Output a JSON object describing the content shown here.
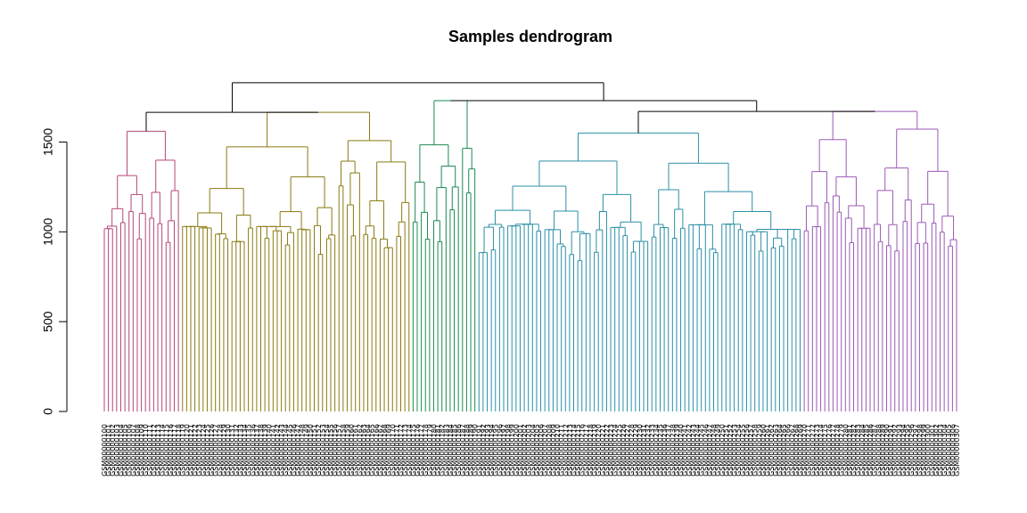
{
  "chart_data": {
    "type": "dendrogram",
    "title": "Samples dendrogram",
    "xlabel": "",
    "ylabel": "",
    "ylim": [
      0,
      1750
    ],
    "yticks": [
      0,
      500,
      1000,
      1500
    ],
    "yticklabels": [
      "0",
      "500",
      "1000",
      "1500"
    ],
    "grid": false,
    "root_height": 1830,
    "clusters": [
      {
        "name": "1",
        "color": "#B5467A",
        "leaf_count": 19,
        "merge_height": 1560
      },
      {
        "name": "2",
        "color": "#8A7A10",
        "leaf_count": 56,
        "merge_height": 1665
      },
      {
        "name": "3",
        "color": "#1A8A50",
        "leaf_count": 16,
        "merge_height": 1730
      },
      {
        "name": "4",
        "color": "#2B8FA6",
        "leaf_count": 79,
        "merge_height": 1550
      },
      {
        "name": "5",
        "color": "#9B59B6",
        "leaf_count": 38,
        "merge_height": 1670
      }
    ],
    "upper_merges": [
      {
        "left": "1",
        "right": "2",
        "height": 1665
      },
      {
        "left": "4",
        "right": "5",
        "height": 1670
      },
      {
        "left": "3",
        "right": "4+5",
        "height": 1730
      },
      {
        "left": "1+2",
        "right": "3+4+5",
        "height": 1830
      }
    ]
  }
}
